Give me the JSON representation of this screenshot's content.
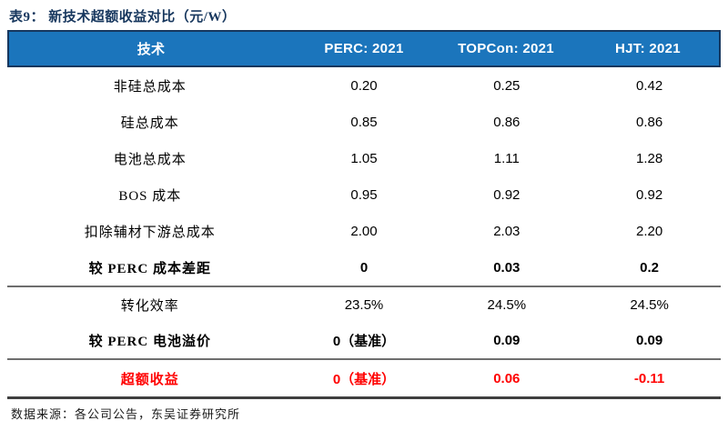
{
  "title": "表9：  新技术超额收益对比（元/W）",
  "table": {
    "columns": {
      "tech": "技术",
      "perc": "PERC:  2021",
      "topcon": "TOPCon:  2021",
      "hjt": "HJT:  2021"
    },
    "rows": [
      {
        "label": "非硅总成本",
        "perc": "0.20",
        "topcon": "0.25",
        "hjt": "0.42"
      },
      {
        "label": "硅总成本",
        "perc": "0.85",
        "topcon": "0.86",
        "hjt": "0.86"
      },
      {
        "label": "电池总成本",
        "perc": "1.05",
        "topcon": "1.11",
        "hjt": "1.28"
      },
      {
        "label": "BOS 成本",
        "perc": "0.95",
        "topcon": "0.92",
        "hjt": "0.92"
      },
      {
        "label": "扣除辅材下游总成本",
        "perc": "2.00",
        "topcon": "2.03",
        "hjt": "2.20"
      },
      {
        "label": "较 PERC 成本差距",
        "perc": "0",
        "topcon": "0.03",
        "hjt": "0.2"
      },
      {
        "label": "转化效率",
        "perc": "23.5%",
        "topcon": "24.5%",
        "hjt": "24.5%"
      },
      {
        "label": "较 PERC 电池溢价",
        "perc": "0（基准）",
        "topcon": "0.09",
        "hjt": "0.09"
      },
      {
        "label": "超额收益",
        "perc": "0（基准）",
        "topcon": "0.06",
        "hjt": "-0.11"
      }
    ]
  },
  "source_note": "数据来源：各公司公告，东吴证券研究所",
  "colors": {
    "header_bg": "#1B75BC",
    "header_border": "#17375E",
    "title_navy": "#17375E",
    "highlight_red": "#FF0000",
    "divider_gray": "#6E6E6E",
    "bottom_rule": "#404040"
  }
}
